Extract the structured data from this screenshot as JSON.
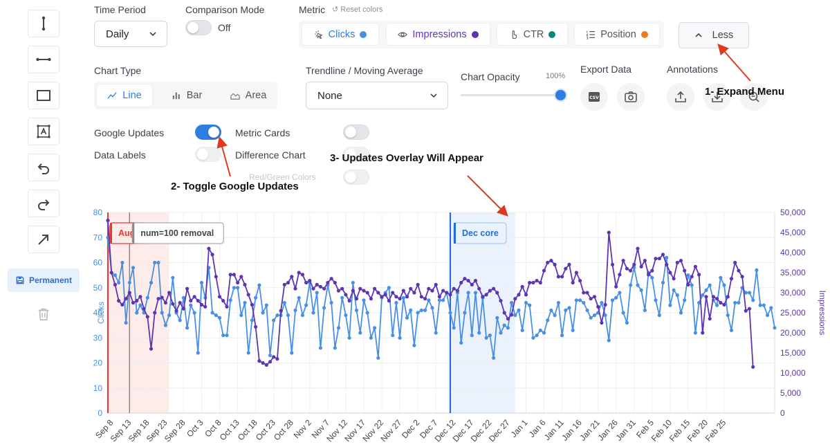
{
  "toolbar": {
    "tools": [
      {
        "name": "vertical-line-tool-button",
        "icon": "vertical-line-icon"
      },
      {
        "name": "horizontal-line-tool-button",
        "icon": "horizontal-line-icon"
      },
      {
        "name": "rectangle-tool-button",
        "icon": "rectangle-icon"
      },
      {
        "name": "text-box-tool-button",
        "icon": "text-box-icon"
      },
      {
        "name": "undo-button",
        "icon": "undo-icon"
      },
      {
        "name": "redo-button",
        "icon": "redo-icon"
      },
      {
        "name": "arrow-tool-button",
        "icon": "arrow-icon"
      }
    ],
    "permanent_label": "Permanent"
  },
  "controls": {
    "time_period": {
      "label": "Time Period",
      "value": "Daily"
    },
    "comparison_mode": {
      "label": "Comparison Mode",
      "state": "Off"
    },
    "metric": {
      "label": "Metric",
      "reset_label": "↺ Reset colors",
      "items": [
        {
          "label": "Clicks",
          "color": "#4a90e2",
          "text_color": "#2f7de1"
        },
        {
          "label": "Impressions",
          "color": "#5e35b1",
          "text_color": "#5e35b1"
        },
        {
          "label": "CTR",
          "color": "#00897b",
          "text_color": "#555555"
        },
        {
          "label": "Position",
          "color": "#e67e22",
          "text_color": "#555555"
        }
      ]
    },
    "less_label": "Less",
    "chart_type": {
      "label": "Chart Type",
      "options": [
        "Line",
        "Bar",
        "Area"
      ],
      "selected": "Line"
    },
    "trendline": {
      "label": "Trendline / Moving Average",
      "value": "None"
    },
    "opacity": {
      "label": "Chart Opacity",
      "value": "100%"
    },
    "export_label": "Export Data",
    "annotations_label": "Annotations",
    "google_updates_label": "Google Updates",
    "metric_cards_label": "Metric Cards",
    "data_labels_label": "Data Labels",
    "difference_chart_label": "Difference Chart",
    "red_green_label": "Red/Green Colors"
  },
  "annotations_overlay": {
    "step1": "1- Expand Menu",
    "step2": "2- Toggle Google Updates",
    "step3": "3- Updates Overlay Will Appear"
  },
  "chart_data": {
    "type": "line",
    "ylabel": "Clicks",
    "y2label": "Impressions",
    "ylim": [
      0,
      80
    ],
    "y2lim": [
      0,
      50000
    ],
    "yticks": [
      0,
      10,
      20,
      30,
      40,
      50,
      60,
      70,
      80
    ],
    "y2ticks": [
      "0",
      "5,000",
      "10,000",
      "15,000",
      "20,000",
      "25,000",
      "30,000",
      "35,000",
      "40,000",
      "45,000",
      "50,000"
    ],
    "start_date": "2025-09-07",
    "xtick_labels": [
      "Sep 8",
      "Sep 13",
      "Sep 18",
      "Sep 23",
      "Sep 28",
      "Oct 3",
      "Oct 8",
      "Oct 13",
      "Oct 18",
      "Oct 23",
      "Oct 28",
      "Nov 2",
      "Nov 7",
      "Nov 12",
      "Nov 17",
      "Nov 22",
      "Nov 27",
      "Dec 2",
      "Dec 7",
      "Dec 12",
      "Dec 17",
      "Dec 22",
      "Dec 27",
      "Jan 1",
      "Jan 6",
      "Jan 11",
      "Jan 16",
      "Jan 21",
      "Jan 26",
      "Jan 31",
      "Feb 5",
      "Feb 10",
      "Feb 15",
      "Feb 20",
      "Feb 25"
    ],
    "update_overlays": [
      {
        "label": "Aug s",
        "start_day": 0,
        "end_day": 17,
        "color": "#e53935",
        "fill": "#fdecea"
      },
      {
        "label": "num=100 removal",
        "start_day": 6,
        "end_day": 6,
        "color": "#888888",
        "fill": "none"
      },
      {
        "label": "Dec core",
        "start_day": 95,
        "end_day": 113,
        "color": "#1e6fd9",
        "fill": "#eaf2fd"
      }
    ],
    "series": [
      {
        "name": "Clicks",
        "axis": "left",
        "color": "#4a90e2",
        "values": [
          70,
          56,
          55,
          52,
          60,
          36,
          52,
          58,
          40,
          43,
          40,
          46,
          52,
          60,
          60,
          40,
          35,
          39,
          54,
          40,
          37,
          46,
          34,
          43,
          40,
          24,
          52,
          46,
          58,
          40,
          39,
          38,
          31,
          31,
          45,
          50,
          50,
          39,
          44,
          24,
          37,
          46,
          51,
          40,
          43,
          23,
          37,
          39,
          39,
          44,
          39,
          24,
          41,
          46,
          39,
          43,
          52,
          40,
          48,
          26,
          42,
          51,
          44,
          26,
          34,
          46,
          39,
          30,
          52,
          41,
          32,
          45,
          40,
          30,
          34,
          22,
          46,
          48,
          50,
          31,
          44,
          30,
          46,
          38,
          41,
          27,
          40,
          41,
          41,
          45,
          42,
          32,
          45,
          45,
          48,
          40,
          34,
          48,
          28,
          40,
          48,
          31,
          48,
          32,
          46,
          30,
          31,
          22,
          38,
          32,
          35,
          34,
          44,
          39,
          41,
          33,
          44,
          43,
          30,
          31,
          33,
          32,
          37,
          41,
          39,
          44,
          31,
          41,
          42,
          33,
          45,
          45,
          44,
          41,
          38,
          39,
          40,
          44,
          39,
          29,
          45,
          46,
          48,
          40,
          36,
          51,
          58,
          51,
          49,
          41,
          56,
          54,
          45,
          39,
          52,
          62,
          43,
          49,
          47,
          40,
          45,
          55,
          51,
          32,
          44,
          47,
          49,
          51,
          45,
          43,
          54,
          51,
          39,
          33,
          44,
          44,
          50,
          48,
          48,
          45,
          57,
          43,
          43,
          39,
          42,
          34
        ]
      },
      {
        "name": "Impressions",
        "axis": "right",
        "color": "#5e35b1",
        "values": [
          48000,
          35000,
          32000,
          28000,
          27000,
          28500,
          30000,
          27500,
          28000,
          29000,
          26000,
          24000,
          16000,
          25000,
          28500,
          28800,
          27500,
          30000,
          27200,
          25500,
          27500,
          26000,
          31000,
          28000,
          29000,
          28000,
          27000,
          26500,
          41000,
          39500,
          34000,
          29000,
          28000,
          26500,
          34500,
          34500,
          32500,
          34000,
          32000,
          29500,
          27000,
          21500,
          13000,
          12500,
          12000,
          12800,
          14000,
          13500,
          25500,
          32000,
          32500,
          34000,
          31000,
          35000,
          34500,
          32500,
          33000,
          31000,
          32000,
          31500,
          31000,
          32500,
          33500,
          32500,
          30500,
          31000,
          29500,
          28000,
          30500,
          28500,
          31000,
          30500,
          30000,
          28500,
          31000,
          30000,
          29000,
          29500,
          28000,
          30000,
          29000,
          28500,
          30500,
          29000,
          31000,
          30000,
          32000,
          29000,
          28500,
          31000,
          30500,
          32000,
          29000,
          30500,
          30000,
          29500,
          31000,
          30500,
          32500,
          33500,
          33000,
          32000,
          33000,
          31000,
          29000,
          29500,
          30500,
          31000,
          30000,
          28000,
          25000,
          23500,
          24500,
          28500,
          29500,
          31500,
          29500,
          32500,
          32500,
          33000,
          32500,
          35500,
          37500,
          38000,
          37000,
          34000,
          34000,
          36000,
          37000,
          32500,
          35000,
          33000,
          30000,
          30000,
          28500,
          29000,
          26500,
          22500,
          27000,
          45000,
          37000,
          31500,
          34500,
          38000,
          36000,
          35500,
          37000,
          41000,
          36500,
          38000,
          34500,
          35500,
          38500,
          38500,
          39500,
          37000,
          35000,
          33500,
          37500,
          38000,
          35500,
          32000,
          34000,
          36500,
          34500,
          20000,
          29000,
          23500,
          29000,
          28500,
          27500,
          27000,
          29000,
          33500,
          37500,
          35500,
          34000,
          25500,
          26000,
          11500
        ]
      }
    ]
  }
}
